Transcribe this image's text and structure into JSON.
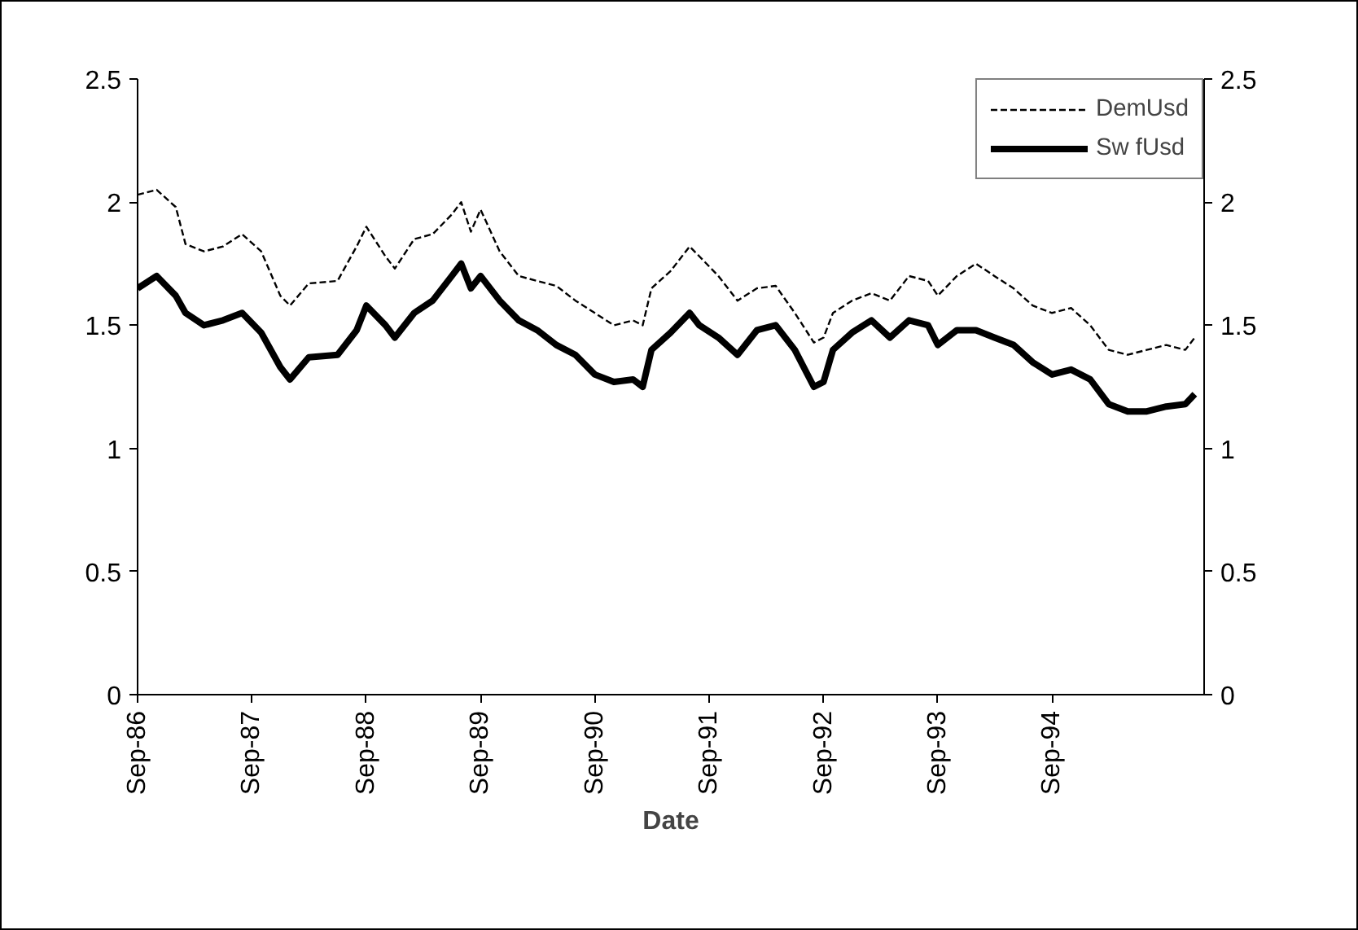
{
  "chart_data": {
    "type": "line",
    "xlabel": "Date",
    "legend": "top right",
    "grid": false,
    "xlim": [
      "1986-09",
      "1995-12-31"
    ],
    "xticks": [
      {
        "value": "1986-09",
        "label": "Sep-86"
      },
      {
        "value": "1987-09",
        "label": "Sep-87"
      },
      {
        "value": "1988-09",
        "label": "Sep-88"
      },
      {
        "value": "1989-09",
        "label": "Sep-89"
      },
      {
        "value": "1990-09",
        "label": "Sep-90"
      },
      {
        "value": "1991-09",
        "label": "Sep-91"
      },
      {
        "value": "1992-09",
        "label": "Sep-92"
      },
      {
        "value": "1993-09",
        "label": "Sep-93"
      },
      {
        "value": "1994-09",
        "label": "Sep-94"
      }
    ],
    "ylim": [
      0,
      2.5
    ],
    "yticks": [
      0,
      0.5,
      1,
      1.5,
      2,
      2.5
    ],
    "y2lim": [
      0,
      2.5
    ],
    "y2ticks": [
      0,
      0.5,
      1,
      1.5,
      2,
      2.5
    ],
    "x": [
      "1986-09",
      "1986-11",
      "1987-01",
      "1987-02",
      "1987-04",
      "1987-06",
      "1987-08",
      "1987-10",
      "1987-12",
      "1988-01",
      "1988-03",
      "1988-06",
      "1988-08",
      "1988-09",
      "1988-11",
      "1988-12",
      "1989-02",
      "1989-04",
      "1989-06",
      "1989-07",
      "1989-08",
      "1989-09",
      "1989-11",
      "1990-01",
      "1990-03",
      "1990-05",
      "1990-07",
      "1990-09",
      "1990-11",
      "1991-01",
      "1991-02",
      "1991-03",
      "1991-05",
      "1991-07",
      "1991-08",
      "1991-10",
      "1991-12",
      "1992-02",
      "1992-04",
      "1992-06",
      "1992-08",
      "1992-09",
      "1992-10",
      "1992-12",
      "1993-02",
      "1993-04",
      "1993-06",
      "1993-08",
      "1993-09",
      "1993-11",
      "1994-01",
      "1994-03",
      "1994-05",
      "1994-07",
      "1994-09",
      "1994-11",
      "1995-01",
      "1995-03",
      "1995-05",
      "1995-07",
      "1995-09",
      "1995-11",
      "1995-12"
    ],
    "series": [
      {
        "name": "DemUsd",
        "color": "#000000",
        "line_style": "dashed",
        "values": [
          2.03,
          2.05,
          1.98,
          1.83,
          1.8,
          1.82,
          1.87,
          1.8,
          1.62,
          1.58,
          1.67,
          1.68,
          1.82,
          1.9,
          1.78,
          1.73,
          1.85,
          1.87,
          1.95,
          2.0,
          1.88,
          1.97,
          1.8,
          1.7,
          1.68,
          1.66,
          1.6,
          1.55,
          1.5,
          1.52,
          1.5,
          1.65,
          1.72,
          1.82,
          1.78,
          1.7,
          1.6,
          1.65,
          1.66,
          1.55,
          1.43,
          1.45,
          1.55,
          1.6,
          1.63,
          1.6,
          1.7,
          1.68,
          1.62,
          1.7,
          1.75,
          1.7,
          1.65,
          1.58,
          1.55,
          1.57,
          1.5,
          1.4,
          1.38,
          1.4,
          1.42,
          1.4,
          1.45
        ]
      },
      {
        "name": "Sw fUsd",
        "color": "#000000",
        "line_style": "solid",
        "values": [
          1.65,
          1.7,
          1.62,
          1.55,
          1.5,
          1.52,
          1.55,
          1.47,
          1.33,
          1.28,
          1.37,
          1.38,
          1.48,
          1.58,
          1.5,
          1.45,
          1.55,
          1.6,
          1.7,
          1.75,
          1.65,
          1.7,
          1.6,
          1.52,
          1.48,
          1.42,
          1.38,
          1.3,
          1.27,
          1.28,
          1.25,
          1.4,
          1.47,
          1.55,
          1.5,
          1.45,
          1.38,
          1.48,
          1.5,
          1.4,
          1.25,
          1.27,
          1.4,
          1.47,
          1.52,
          1.45,
          1.52,
          1.5,
          1.42,
          1.48,
          1.48,
          1.45,
          1.42,
          1.35,
          1.3,
          1.32,
          1.28,
          1.18,
          1.15,
          1.15,
          1.17,
          1.18,
          1.22
        ]
      }
    ]
  }
}
